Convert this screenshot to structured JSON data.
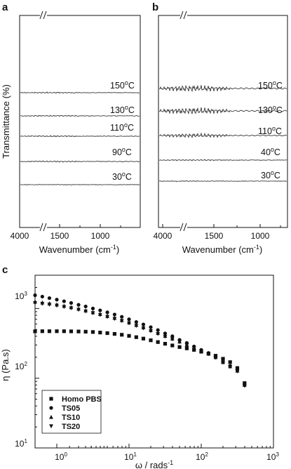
{
  "chart_data": [
    {
      "panel": "a",
      "type": "line",
      "xlabel": "Wavenumber (cm",
      "xlabel_sup": "-1",
      "xlabel_end": ")",
      "ylabel": "Transmittance (%)",
      "xticks": [
        "4000",
        "1500",
        "1000"
      ],
      "axis_break": "//",
      "series": [
        {
          "name": "150°C",
          "label_main": "150",
          "label_unit": "C",
          "feature": "weak"
        },
        {
          "name": "130°C",
          "label_main": "130",
          "label_unit": "C",
          "feature": "weak"
        },
        {
          "name": "110°C",
          "label_main": "110",
          "label_unit": "C",
          "feature": "weak"
        },
        {
          "name": "90°C",
          "label_main": "90",
          "label_unit": "C",
          "feature": "weak"
        },
        {
          "name": "30°C",
          "label_main": "30",
          "label_unit": "C",
          "feature": "flat"
        }
      ]
    },
    {
      "panel": "b",
      "type": "line",
      "xlabel": "Wavenumber (cm",
      "xlabel_sup": "-1",
      "xlabel_end": ")",
      "xticks": [
        "4000",
        "1500",
        "1000"
      ],
      "axis_break": "//",
      "series": [
        {
          "name": "150°C",
          "label_main": "150",
          "label_unit": "C",
          "feature": "strong"
        },
        {
          "name": "130°C",
          "label_main": "130",
          "label_unit": "C",
          "feature": "strong"
        },
        {
          "name": "110°C",
          "label_main": "110",
          "label_unit": "C",
          "feature": "medium"
        },
        {
          "name": "40°C",
          "label_main": "40",
          "label_unit": "C",
          "feature": "weak"
        },
        {
          "name": "30°C",
          "label_main": "30",
          "label_unit": "C",
          "feature": "flat"
        }
      ]
    },
    {
      "panel": "c",
      "type": "scatter",
      "log_x": true,
      "log_y": true,
      "xlim": [
        0.5,
        1000
      ],
      "ylim": [
        10,
        3000
      ],
      "xlabel": "ω / rads",
      "xlabel_sup": "-1",
      "ylabel": "η (Pa.s)",
      "xticks": [
        {
          "value": 1,
          "base": "10",
          "exp": "0"
        },
        {
          "value": 10,
          "base": "10",
          "exp": "1"
        },
        {
          "value": 100,
          "base": "10",
          "exp": "2"
        },
        {
          "value": 1000,
          "base": "10",
          "exp": "3"
        }
      ],
      "yticks": [
        {
          "value": 10,
          "base": "10",
          "exp": "1"
        },
        {
          "value": 100,
          "base": "10",
          "exp": "2"
        },
        {
          "value": 1000,
          "base": "10",
          "exp": "3"
        }
      ],
      "legend_position": "bottom-left",
      "x": [
        0.5,
        0.63,
        0.79,
        1.0,
        1.26,
        1.58,
        2.0,
        2.51,
        3.16,
        3.98,
        5.01,
        6.31,
        7.94,
        10.0,
        12.6,
        15.8,
        20.0,
        25.1,
        31.6,
        39.8,
        50.1,
        63.1,
        79.4,
        100,
        126,
        158,
        200,
        251,
        316,
        398
      ],
      "series": [
        {
          "name": "Homo PBS",
          "marker": "square",
          "values": [
            470,
            472,
            472,
            472,
            472,
            470,
            468,
            465,
            460,
            452,
            443,
            432,
            420,
            405,
            388,
            370,
            350,
            330,
            312,
            295,
            280,
            268,
            255,
            240,
            225,
            210,
            190,
            170,
            140,
            85
          ]
        },
        {
          "name": "TS05",
          "marker": "circle",
          "values": [
            1550,
            1480,
            1410,
            1340,
            1270,
            1200,
            1130,
            1070,
            1000,
            940,
            880,
            820,
            760,
            700,
            640,
            590,
            540,
            490,
            440,
            400,
            355,
            320,
            285,
            255,
            230,
            200,
            170,
            150,
            130,
            80
          ]
        },
        {
          "name": "TS10",
          "marker": "triangle-up",
          "values": [
            1250,
            1215,
            1180,
            1140,
            1090,
            1040,
            990,
            935,
            880,
            830,
            780,
            730,
            680,
            630,
            580,
            535,
            490,
            445,
            405,
            370,
            335,
            303,
            275,
            250,
            225,
            200,
            170,
            148,
            128,
            80
          ]
        },
        {
          "name": "TS20",
          "marker": "triangle-down",
          "values": [
            1200,
            1170,
            1140,
            1100,
            1055,
            1010,
            960,
            910,
            860,
            810,
            760,
            712,
            665,
            615,
            565,
            520,
            475,
            432,
            395,
            362,
            330,
            298,
            270,
            245,
            222,
            197,
            168,
            146,
            126,
            78
          ]
        }
      ]
    }
  ]
}
